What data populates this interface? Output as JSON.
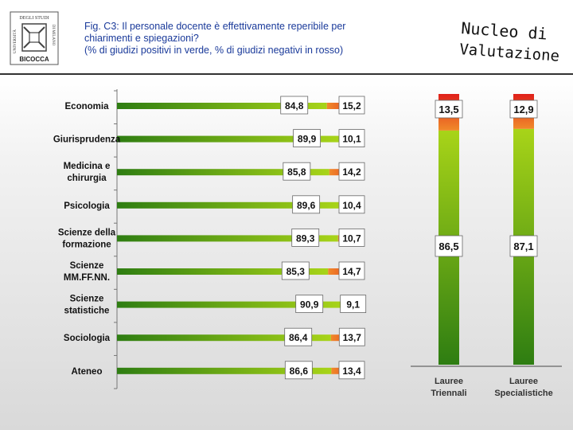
{
  "header": {
    "title_line1": "Fig. C3: Il personale docente è effettivamente reperibile per",
    "title_line2": "chiarimenti e spiegazioni?",
    "title_line3": "(% di giudizi positivi in verde, % di giudizi negativi in rosso)",
    "brand_line1": "Nucleo di",
    "brand_line2": "Valutazione",
    "logo_text_top": "DEGLI STUDI",
    "logo_text_left": "UNIVERSITÀ",
    "logo_text_right": "DI MILANO",
    "logo_text_bottom": "BICOCCA"
  },
  "colors": {
    "positive": "#4a9a1a",
    "negative": "#e23a1a",
    "title": "#1a3a9a"
  },
  "chart_data": [
    {
      "type": "bar",
      "orientation": "horizontal",
      "stacked": true,
      "categories": [
        "Economia",
        "Giurisprudenza",
        "Medicina e chirurgia",
        "Psicologia",
        "Scienze della formazione",
        "Scienze MM.FF.NN.",
        "Scienze statistiche",
        "Sociologia",
        "Ateneo"
      ],
      "series": [
        {
          "values": [
            84.8,
            89.9,
            85.8,
            89.6,
            89.3,
            85.3,
            90.9,
            86.4,
            86.6
          ]
        },
        {
          "values": [
            15.2,
            10.1,
            14.2,
            10.4,
            10.7,
            14.7,
            9.1,
            13.7,
            13.4
          ]
        }
      ],
      "value_labels": {
        "positive": [
          "84,8",
          "89,9",
          "85,8",
          "89,6",
          "89,3",
          "85,3",
          "90,9",
          "86,4",
          "86,6"
        ],
        "negative": [
          "15,2",
          "10,1",
          "14,2",
          "10,4",
          "10,7",
          "14,7",
          "9,1",
          "13,7",
          "13,4"
        ]
      },
      "xlim": [
        0,
        100
      ]
    },
    {
      "type": "bar",
      "orientation": "vertical",
      "stacked": true,
      "categories": [
        "Lauree Triennali",
        "Lauree Specialistiche"
      ],
      "series": [
        {
          "values": [
            86.5,
            87.1
          ]
        },
        {
          "values": [
            13.5,
            12.9
          ]
        }
      ],
      "value_labels": {
        "positive": [
          "86,5",
          "87,1"
        ],
        "negative": [
          "13,5",
          "12,9"
        ]
      },
      "ylim": [
        0,
        100
      ]
    }
  ]
}
